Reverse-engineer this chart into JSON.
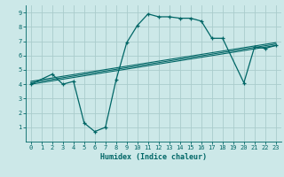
{
  "xlabel": "Humidex (Indice chaleur)",
  "bg_color": "#cce8e8",
  "grid_color": "#aacccc",
  "line_color": "#006666",
  "xlim": [
    -0.5,
    23.5
  ],
  "ylim": [
    0,
    9.5
  ],
  "xticks": [
    0,
    1,
    2,
    3,
    4,
    5,
    6,
    7,
    8,
    9,
    10,
    11,
    12,
    13,
    14,
    15,
    16,
    17,
    18,
    19,
    20,
    21,
    22,
    23
  ],
  "yticks": [
    1,
    2,
    3,
    4,
    5,
    6,
    7,
    8,
    9
  ],
  "line1_x": [
    0,
    2,
    3,
    4,
    5,
    6,
    7,
    8,
    9,
    10,
    11,
    12,
    13,
    14,
    15,
    16,
    17,
    18,
    20,
    21,
    22,
    23
  ],
  "line1_y": [
    4.0,
    4.7,
    4.0,
    4.2,
    1.3,
    0.7,
    1.0,
    4.3,
    6.9,
    8.1,
    8.9,
    8.7,
    8.7,
    8.6,
    8.6,
    8.4,
    7.2,
    7.2,
    4.1,
    6.6,
    6.5,
    6.7
  ],
  "line2_x": [
    0,
    23
  ],
  "line2_y": [
    4.0,
    6.7
  ],
  "line3_x": [
    0,
    23
  ],
  "line3_y": [
    4.1,
    6.8
  ],
  "line4_x": [
    0,
    23
  ],
  "line4_y": [
    4.2,
    6.9
  ]
}
